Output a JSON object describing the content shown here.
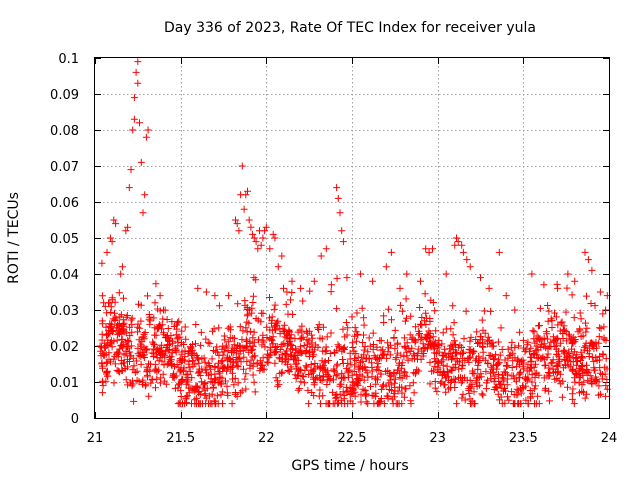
{
  "chart_data": {
    "type": "scatter",
    "title": "Day 336 of 2023, Rate Of TEC Index for receiver yula",
    "xlabel": "GPS time / hours",
    "ylabel": "ROTI / TECUs",
    "xlim": [
      21,
      24
    ],
    "ylim": [
      0,
      0.1
    ],
    "xticks": [
      21,
      21.5,
      22,
      22.5,
      23,
      23.5,
      24
    ],
    "xtick_labels": [
      "21",
      "21.5",
      "22",
      "22.5",
      "23",
      "23.5",
      "24"
    ],
    "yticks": [
      0,
      0.01,
      0.02,
      0.03,
      0.04,
      0.05,
      0.06,
      0.07,
      0.08,
      0.09,
      0.1
    ],
    "ytick_labels": [
      "0",
      "0.01",
      "0.02",
      "0.03",
      "0.04",
      "0.05",
      "0.06",
      "0.07",
      "0.08",
      "0.09",
      "0.1"
    ],
    "grid": true,
    "marker": "+",
    "series": [
      {
        "name": "ROTI",
        "color": "#ff0000",
        "points": [
          [
            21.03,
            0.02
          ],
          [
            21.04,
            0.043
          ],
          [
            21.05,
            0.032
          ],
          [
            21.06,
            0.031
          ],
          [
            21.07,
            0.046
          ],
          [
            21.09,
            0.05
          ],
          [
            21.1,
            0.049
          ],
          [
            21.11,
            0.055
          ],
          [
            21.12,
            0.054
          ],
          [
            21.15,
            0.04
          ],
          [
            21.16,
            0.042
          ],
          [
            21.18,
            0.052
          ],
          [
            21.19,
            0.053
          ],
          [
            21.2,
            0.064
          ],
          [
            21.21,
            0.069
          ],
          [
            21.22,
            0.08
          ],
          [
            21.23,
            0.083
          ],
          [
            21.23,
            0.089
          ],
          [
            21.24,
            0.096
          ],
          [
            21.25,
            0.099
          ],
          [
            21.25,
            0.093
          ],
          [
            21.26,
            0.082
          ],
          [
            21.27,
            0.071
          ],
          [
            21.28,
            0.057
          ],
          [
            21.29,
            0.062
          ],
          [
            21.3,
            0.078
          ],
          [
            21.31,
            0.08
          ],
          [
            21.32,
            0.026
          ],
          [
            21.35,
            0.032
          ],
          [
            21.38,
            0.034
          ],
          [
            21.4,
            0.03
          ],
          [
            21.6,
            0.036
          ],
          [
            21.65,
            0.035
          ],
          [
            21.7,
            0.034
          ],
          [
            21.78,
            0.034
          ],
          [
            21.82,
            0.055
          ],
          [
            21.83,
            0.054
          ],
          [
            21.84,
            0.052
          ],
          [
            21.85,
            0.062
          ],
          [
            21.86,
            0.07
          ],
          [
            21.87,
            0.058
          ],
          [
            21.88,
            0.062
          ],
          [
            21.89,
            0.063
          ],
          [
            21.9,
            0.055
          ],
          [
            21.91,
            0.053
          ],
          [
            21.92,
            0.051
          ],
          [
            21.93,
            0.05
          ],
          [
            21.94,
            0.049
          ],
          [
            21.95,
            0.047
          ],
          [
            21.96,
            0.052
          ],
          [
            21.97,
            0.048
          ],
          [
            21.98,
            0.05
          ],
          [
            21.99,
            0.052
          ],
          [
            22.0,
            0.053
          ],
          [
            22.02,
            0.047
          ],
          [
            22.04,
            0.051
          ],
          [
            22.05,
            0.05
          ],
          [
            22.07,
            0.042
          ],
          [
            22.09,
            0.045
          ],
          [
            22.1,
            0.036
          ],
          [
            22.12,
            0.035
          ],
          [
            22.15,
            0.038
          ],
          [
            22.2,
            0.036
          ],
          [
            22.28,
            0.038
          ],
          [
            22.32,
            0.045
          ],
          [
            22.35,
            0.047
          ],
          [
            22.38,
            0.037
          ],
          [
            22.41,
            0.064
          ],
          [
            22.42,
            0.061
          ],
          [
            22.43,
            0.057
          ],
          [
            22.44,
            0.052
          ],
          [
            22.45,
            0.049
          ],
          [
            22.47,
            0.039
          ],
          [
            22.55,
            0.04
          ],
          [
            22.62,
            0.038
          ],
          [
            22.7,
            0.042
          ],
          [
            22.73,
            0.046
          ],
          [
            22.78,
            0.036
          ],
          [
            22.82,
            0.04
          ],
          [
            22.9,
            0.038
          ],
          [
            22.93,
            0.047
          ],
          [
            22.95,
            0.046
          ],
          [
            22.97,
            0.047
          ],
          [
            23.05,
            0.04
          ],
          [
            23.1,
            0.048
          ],
          [
            23.11,
            0.05
          ],
          [
            23.12,
            0.049
          ],
          [
            23.14,
            0.048
          ],
          [
            23.15,
            0.046
          ],
          [
            23.17,
            0.044
          ],
          [
            23.19,
            0.042
          ],
          [
            23.25,
            0.039
          ],
          [
            23.3,
            0.036
          ],
          [
            23.36,
            0.046
          ],
          [
            23.4,
            0.034
          ],
          [
            23.45,
            0.03
          ],
          [
            23.55,
            0.04
          ],
          [
            23.62,
            0.037
          ],
          [
            23.7,
            0.036
          ],
          [
            23.76,
            0.04
          ],
          [
            23.8,
            0.038
          ],
          [
            23.86,
            0.046
          ],
          [
            23.88,
            0.044
          ],
          [
            23.9,
            0.041
          ],
          [
            23.95,
            0.035
          ],
          [
            23.98,
            0.03
          ],
          [
            23.99,
            0.034
          ],
          [
            22.74,
            0.004
          ],
          [
            22.71,
            0.006
          ],
          [
            21.83,
            0.006
          ],
          [
            21.85,
            0.007
          ],
          [
            21.55,
            0.007
          ],
          [
            23.98,
            0.006
          ],
          [
            23.99,
            0.008
          ]
        ],
        "generated_points": {
          "count": 1900,
          "x_range": [
            21.03,
            23.99
          ],
          "baseline_range": [
            0.008,
            0.033
          ],
          "description": "dense background cloud of ROTI values"
        }
      }
    ]
  }
}
